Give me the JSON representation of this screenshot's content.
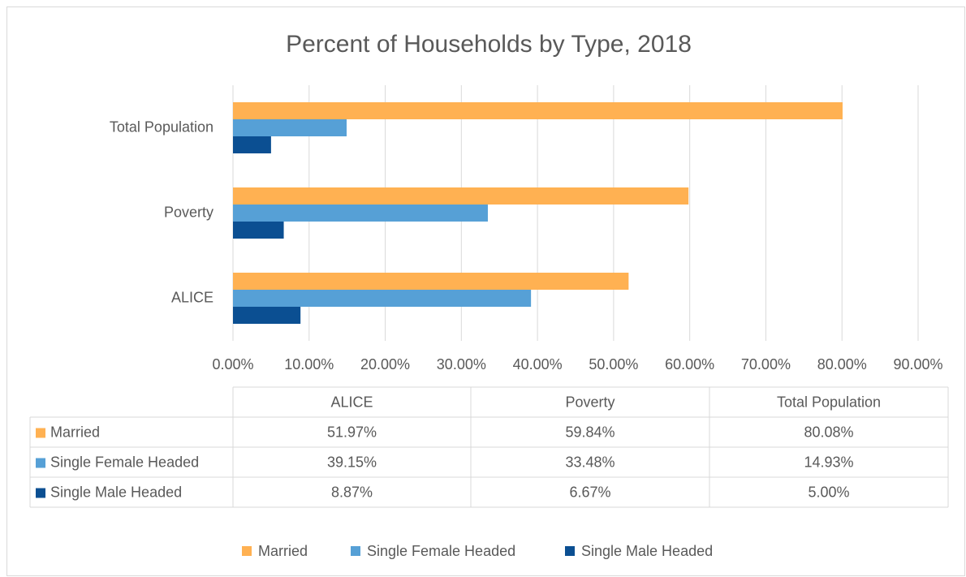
{
  "chart_data": {
    "type": "hbar",
    "title": "Percent of Households by Type, 2018",
    "categories": [
      "ALICE",
      "Poverty",
      "Total Population"
    ],
    "series": [
      {
        "name": "Married",
        "color": "#ffb152",
        "values": [
          51.97,
          59.84,
          80.08
        ],
        "value_labels": [
          "51.97%",
          "59.84%",
          "80.08%"
        ]
      },
      {
        "name": "Single Female Headed",
        "color": "#56a0d6",
        "values": [
          39.15,
          33.48,
          14.93
        ],
        "value_labels": [
          "39.15%",
          "33.48%",
          "14.93%"
        ]
      },
      {
        "name": "Single Male Headed",
        "color": "#0b4f92",
        "values": [
          8.87,
          6.67,
          5.0
        ],
        "value_labels": [
          "8.87%",
          "6.67%",
          "5.00%"
        ]
      }
    ],
    "xlim": [
      0,
      90
    ],
    "xticks": [
      {
        "value": 0,
        "label": "0.00%"
      },
      {
        "value": 10,
        "label": "10.00%"
      },
      {
        "value": 20,
        "label": "20.00%"
      },
      {
        "value": 30,
        "label": "30.00%"
      },
      {
        "value": 40,
        "label": "40.00%"
      },
      {
        "value": 50,
        "label": "50.00%"
      },
      {
        "value": 60,
        "label": "60.00%"
      },
      {
        "value": 70,
        "label": "70.00%"
      },
      {
        "value": 80,
        "label": "80.00%"
      },
      {
        "value": 90,
        "label": "90.00%"
      }
    ],
    "grid": true,
    "legend": "bottom"
  }
}
